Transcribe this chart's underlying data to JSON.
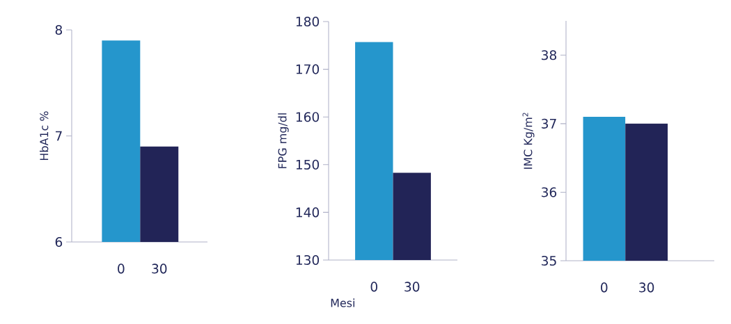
{
  "chart_data": [
    {
      "type": "bar",
      "ylabel": "HbA1c %",
      "categories": [
        "0",
        "30"
      ],
      "values": [
        7.9,
        6.9
      ],
      "colors": [
        "#2596cc",
        "#222457"
      ],
      "ylim": [
        6,
        8
      ],
      "yticks": [
        6,
        7,
        8
      ]
    },
    {
      "type": "bar",
      "ylabel": "FPG mg/dl",
      "xlabel": "Mesi",
      "categories": [
        "0",
        "30"
      ],
      "values": [
        175.7,
        148.3
      ],
      "colors": [
        "#2596cc",
        "#222457"
      ],
      "ylim": [
        130,
        180
      ],
      "yticks": [
        130,
        140,
        150,
        160,
        170,
        180
      ]
    },
    {
      "type": "bar",
      "ylabel": "IMC Kg/m$^{2}$",
      "categories": [
        "0",
        "30"
      ],
      "values": [
        37.1,
        37.0
      ],
      "colors": [
        "#2596cc",
        "#222457"
      ],
      "ylim": [
        35,
        38.5
      ],
      "yticks": [
        35,
        36,
        37,
        38
      ]
    }
  ]
}
